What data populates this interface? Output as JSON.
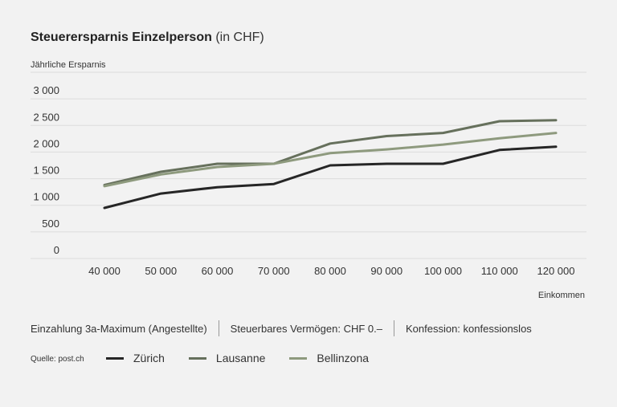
{
  "header": {
    "title": "Steuerersparnis Einzelperson",
    "unit": "(in CHF)"
  },
  "notes": [
    "Einzahlung 3a-Maximum (Angestellte)",
    "Steuerbares Vermögen: CHF 0.–",
    "Konfession: konfessionslos"
  ],
  "source": "Quelle: post.ch",
  "colors": {
    "background": "#f2f2f2",
    "grid": "#dcdcdc",
    "zurich": "#262626",
    "lausanne": "#66705c",
    "bellinzona": "#8e9a7e"
  },
  "chart_data": {
    "type": "line",
    "title": "Steuerersparnis Einzelperson (in CHF)",
    "xlabel": "Einkommen",
    "ylabel": "Jährliche Ersparnis",
    "x": [
      40000,
      50000,
      60000,
      70000,
      80000,
      90000,
      100000,
      110000,
      120000
    ],
    "x_tick_labels": [
      "40 000",
      "50 000",
      "60 000",
      "70 000",
      "80 000",
      "90 000",
      "100 000",
      "110 000",
      "120 000"
    ],
    "y_ticks": [
      0,
      500,
      1000,
      1500,
      2000,
      2500,
      3000
    ],
    "y_tick_labels": [
      "0",
      "500",
      "1 000",
      "1 500",
      "2 000",
      "2 500",
      "3 000"
    ],
    "ylim": [
      0,
      3500
    ],
    "grid": true,
    "legend_position": "bottom",
    "series": [
      {
        "name": "Zürich",
        "values": [
          950,
          1220,
          1340,
          1400,
          1750,
          1780,
          1780,
          2040,
          2100
        ]
      },
      {
        "name": "Lausanne",
        "values": [
          1380,
          1630,
          1780,
          1780,
          2160,
          2300,
          2360,
          2580,
          2600
        ]
      },
      {
        "name": "Bellinzona",
        "values": [
          1360,
          1580,
          1720,
          1780,
          1980,
          2050,
          2140,
          2260,
          2360
        ]
      }
    ]
  }
}
